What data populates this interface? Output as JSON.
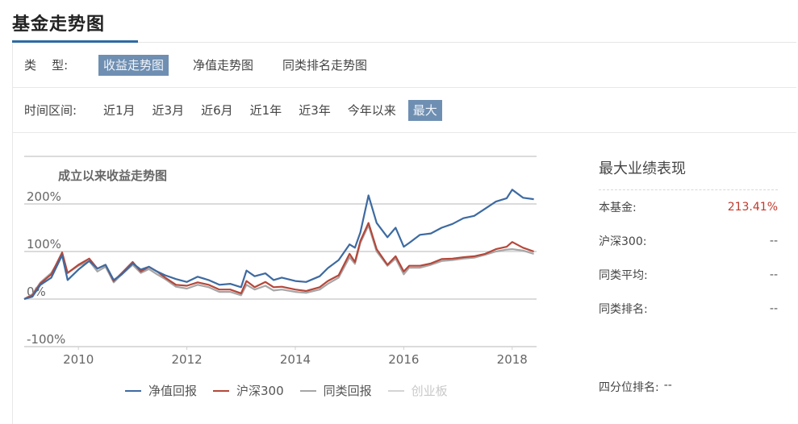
{
  "header": {
    "title": "基金走势图"
  },
  "type_filter": {
    "label": "类    型:",
    "tabs": [
      {
        "label": "收益走势图",
        "selected": true
      },
      {
        "label": "净值走势图",
        "selected": false
      },
      {
        "label": "同类排名走势图",
        "selected": false
      }
    ]
  },
  "time_filter": {
    "label": "时间区间:",
    "tabs": [
      {
        "label": "近1月",
        "selected": false
      },
      {
        "label": "近3月",
        "selected": false
      },
      {
        "label": "近6月",
        "selected": false
      },
      {
        "label": "近1年",
        "selected": false
      },
      {
        "label": "近3年",
        "selected": false
      },
      {
        "label": "今年以来",
        "selected": false
      },
      {
        "label": "最大",
        "selected": true
      }
    ]
  },
  "colors": {
    "accent": "#2e6aa3",
    "selected_tab_bg": "#6f8fb2",
    "positive": "#c0392b"
  },
  "chart_data": {
    "type": "line",
    "title": "成立以来收益走势图",
    "xlabel": "",
    "ylabel": "",
    "ylim": [
      -100,
      200
    ],
    "yticks": [
      "200%",
      "100%",
      "0%",
      "-100%"
    ],
    "ytick_values": [
      200,
      100,
      0,
      -100
    ],
    "xlim": [
      2009.0,
      2018.45
    ],
    "xticks": [
      "2010",
      "2012",
      "2014",
      "2016",
      "2018"
    ],
    "xtick_values": [
      2010,
      2012,
      2014,
      2016,
      2018
    ],
    "grid": true,
    "legend_position": "bottom",
    "x": [
      2009.0,
      2009.15,
      2009.3,
      2009.5,
      2009.7,
      2009.8,
      2010.0,
      2010.2,
      2010.35,
      2010.5,
      2010.65,
      2010.8,
      2011.0,
      2011.15,
      2011.3,
      2011.45,
      2011.6,
      2011.8,
      2012.0,
      2012.2,
      2012.4,
      2012.6,
      2012.8,
      2013.0,
      2013.1,
      2013.25,
      2013.45,
      2013.6,
      2013.75,
      2014.0,
      2014.2,
      2014.45,
      2014.6,
      2014.8,
      2015.0,
      2015.1,
      2015.2,
      2015.35,
      2015.5,
      2015.7,
      2015.85,
      2016.0,
      2016.1,
      2016.3,
      2016.5,
      2016.7,
      2016.9,
      2017.1,
      2017.3,
      2017.5,
      2017.7,
      2017.9,
      2018.0,
      2018.2,
      2018.4
    ],
    "series": [
      {
        "name": "净值回报",
        "color": "#3d6aa1",
        "values": [
          0,
          5,
          30,
          45,
          92,
          40,
          62,
          80,
          64,
          72,
          40,
          52,
          75,
          62,
          68,
          58,
          50,
          42,
          36,
          47,
          40,
          30,
          32,
          25,
          60,
          48,
          54,
          40,
          45,
          38,
          36,
          48,
          65,
          82,
          115,
          108,
          140,
          218,
          160,
          130,
          150,
          110,
          118,
          135,
          138,
          150,
          158,
          170,
          175,
          190,
          205,
          212,
          230,
          213,
          210
        ]
      },
      {
        "name": "沪深300",
        "color": "#b5473a",
        "values": [
          0,
          8,
          33,
          52,
          98,
          55,
          72,
          85,
          64,
          72,
          38,
          55,
          78,
          58,
          68,
          58,
          45,
          30,
          28,
          35,
          30,
          20,
          20,
          12,
          38,
          25,
          36,
          25,
          26,
          20,
          17,
          25,
          38,
          50,
          95,
          78,
          122,
          160,
          105,
          72,
          90,
          58,
          70,
          70,
          75,
          84,
          85,
          88,
          90,
          95,
          105,
          110,
          120,
          108,
          100
        ]
      },
      {
        "name": "同类回报",
        "color": "#a6a6a6",
        "values": [
          0,
          10,
          35,
          55,
          92,
          55,
          70,
          80,
          58,
          68,
          35,
          52,
          72,
          55,
          63,
          52,
          42,
          26,
          22,
          30,
          25,
          15,
          15,
          8,
          30,
          20,
          28,
          18,
          20,
          15,
          13,
          20,
          32,
          45,
          88,
          74,
          118,
          155,
          100,
          70,
          85,
          52,
          66,
          66,
          72,
          80,
          82,
          85,
          87,
          93,
          100,
          104,
          105,
          102,
          95
        ]
      },
      {
        "name": "创业板",
        "color": "#d9d9d9",
        "disabled": true,
        "values": []
      }
    ]
  },
  "legend": [
    {
      "label": "净值回报",
      "color": "#3d6aa1",
      "disabled": false
    },
    {
      "label": "沪深300",
      "color": "#b5473a",
      "disabled": false
    },
    {
      "label": "同类回报",
      "color": "#a6a6a6",
      "disabled": false
    },
    {
      "label": "创业板",
      "color": "#d4d4d4",
      "disabled": true
    }
  ],
  "performance": {
    "title": "最大业绩表现",
    "rows": [
      {
        "label": "本基金:",
        "value": "213.41%"
      },
      {
        "label": "沪深300:",
        "value": "--"
      },
      {
        "label": "同类平均:",
        "value": "--"
      },
      {
        "label": "同类排名:",
        "value": "--"
      }
    ],
    "quartile_label": "四分位排名:",
    "quartile_value": "--"
  }
}
